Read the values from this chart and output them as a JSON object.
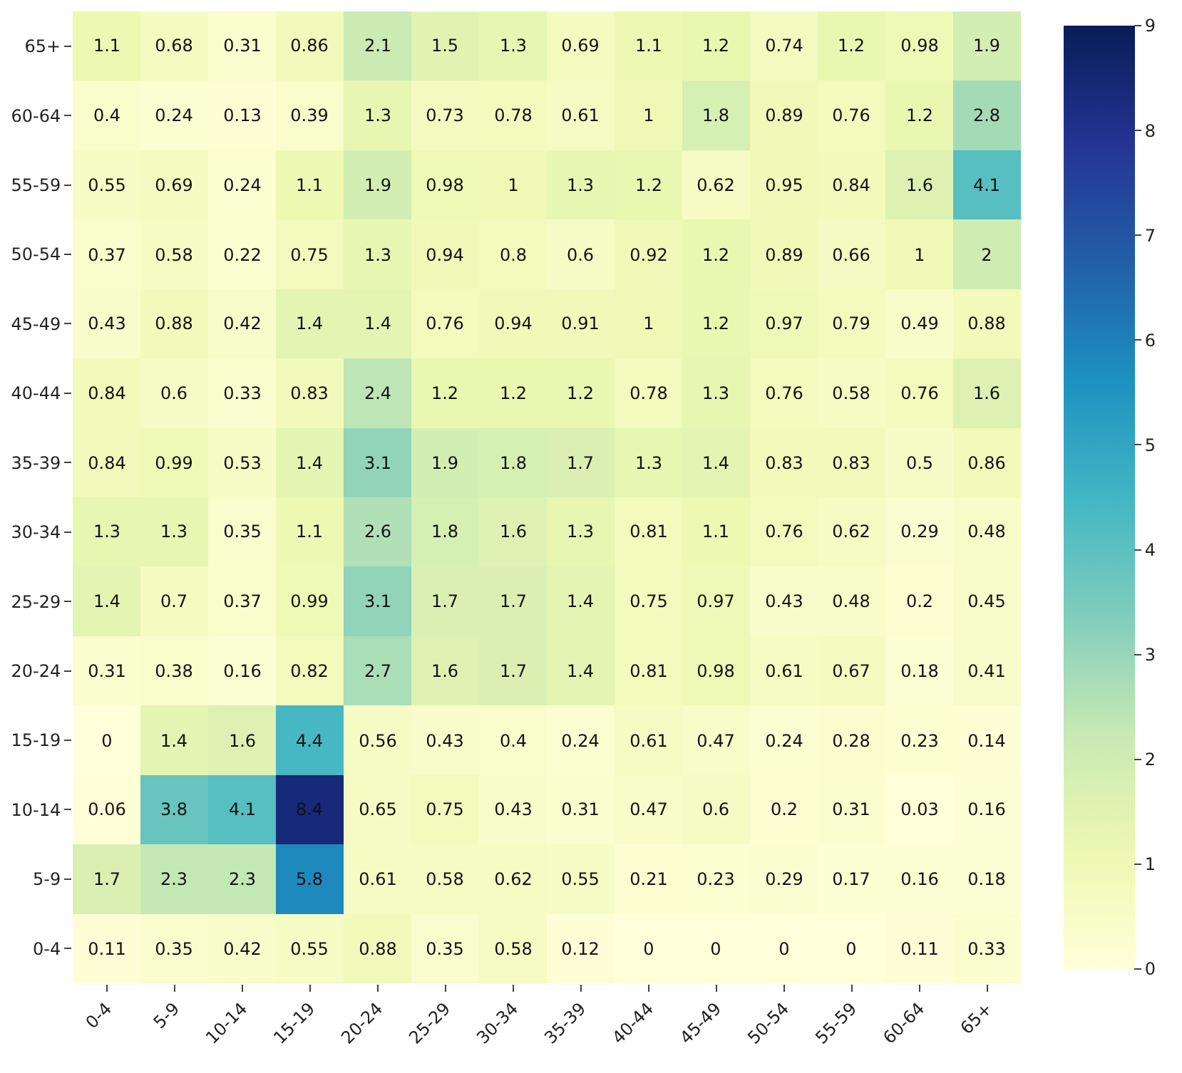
{
  "chart_data": {
    "type": "heatmap",
    "categories": [
      "0-4",
      "5-9",
      "10-14",
      "15-19",
      "20-24",
      "25-29",
      "30-34",
      "35-39",
      "40-44",
      "45-49",
      "50-54",
      "55-59",
      "60-64",
      "65+"
    ],
    "y_categories": [
      "65+",
      "60-64",
      "55-59",
      "50-54",
      "45-49",
      "40-44",
      "35-39",
      "30-34",
      "25-29",
      "20-24",
      "15-19",
      "10-14",
      "5-9",
      "0-4"
    ],
    "cells": [
      [
        1.1,
        0.68,
        0.31,
        0.86,
        2.1,
        1.5,
        1.3,
        0.69,
        1.1,
        1.2,
        0.74,
        1.2,
        0.98,
        1.9
      ],
      [
        0.4,
        0.24,
        0.13,
        0.39,
        1.3,
        0.73,
        0.78,
        0.61,
        1,
        1.8,
        0.89,
        0.76,
        1.2,
        2.8
      ],
      [
        0.55,
        0.69,
        0.24,
        1.1,
        1.9,
        0.98,
        1,
        1.3,
        1.2,
        0.62,
        0.95,
        0.84,
        1.6,
        4.1
      ],
      [
        0.37,
        0.58,
        0.22,
        0.75,
        1.3,
        0.94,
        0.8,
        0.6,
        0.92,
        1.2,
        0.89,
        0.66,
        1,
        2
      ],
      [
        0.43,
        0.88,
        0.42,
        1.4,
        1.4,
        0.76,
        0.94,
        0.91,
        1,
        1.2,
        0.97,
        0.79,
        0.49,
        0.88
      ],
      [
        0.84,
        0.6,
        0.33,
        0.83,
        2.4,
        1.2,
        1.2,
        1.2,
        0.78,
        1.3,
        0.76,
        0.58,
        0.76,
        1.6
      ],
      [
        0.84,
        0.99,
        0.53,
        1.4,
        3.1,
        1.9,
        1.8,
        1.7,
        1.3,
        1.4,
        0.83,
        0.83,
        0.5,
        0.86
      ],
      [
        1.3,
        1.3,
        0.35,
        1.1,
        2.6,
        1.8,
        1.6,
        1.3,
        0.81,
        1.1,
        0.76,
        0.62,
        0.29,
        0.48
      ],
      [
        1.4,
        0.7,
        0.37,
        0.99,
        3.1,
        1.7,
        1.7,
        1.4,
        0.75,
        0.97,
        0.43,
        0.48,
        0.2,
        0.45
      ],
      [
        0.31,
        0.38,
        0.16,
        0.82,
        2.7,
        1.6,
        1.7,
        1.4,
        0.81,
        0.98,
        0.61,
        0.67,
        0.18,
        0.41
      ],
      [
        0,
        1.4,
        1.6,
        4.4,
        0.56,
        0.43,
        0.4,
        0.24,
        0.61,
        0.47,
        0.24,
        0.28,
        0.23,
        0.14
      ],
      [
        0.06,
        3.8,
        4.1,
        8.4,
        0.65,
        0.75,
        0.43,
        0.31,
        0.47,
        0.6,
        0.2,
        0.31,
        0.03,
        0.16
      ],
      [
        1.7,
        2.3,
        2.3,
        5.8,
        0.61,
        0.58,
        0.62,
        0.55,
        0.21,
        0.23,
        0.29,
        0.17,
        0.16,
        0.18
      ],
      [
        0.11,
        0.35,
        0.42,
        0.55,
        0.88,
        0.35,
        0.58,
        0.12,
        0,
        0,
        0,
        0,
        0.11,
        0.33
      ]
    ],
    "clim": [
      0,
      9
    ],
    "cticks": [
      0,
      1,
      2,
      3,
      4,
      5,
      6,
      7,
      8,
      9
    ],
    "data_labels": true
  }
}
